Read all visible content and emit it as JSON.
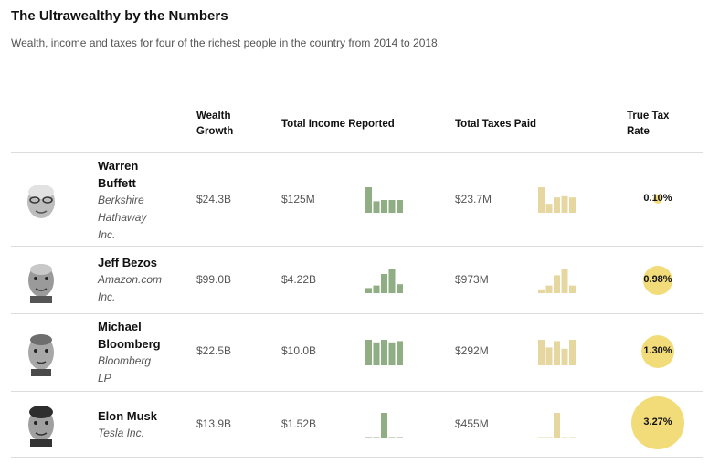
{
  "title": "The Ultrawealthy by the Numbers",
  "subtitle": "Wealth, income and taxes for four of the richest people in the country from 2014 to 2018.",
  "headers": {
    "wealth_1": "Wealth",
    "wealth_2": "Growth",
    "income": "Total Income Reported",
    "taxes": "Total Taxes Paid",
    "rate_1": "True Tax",
    "rate_2": "Rate"
  },
  "colors": {
    "income_bars": "#8fae84",
    "tax_bars": "#e6d7a0",
    "rate_bubble": "#f2dc7a"
  },
  "chart_data": {
    "type": "table",
    "columns": [
      "Wealth Growth",
      "Total Income Reported",
      "Total Taxes Paid",
      "True Tax Rate"
    ],
    "rows": [
      {
        "name_lines": [
          "Warren",
          "Buffett"
        ],
        "company_lines": [
          "Berkshire",
          "Hathaway",
          "Inc."
        ],
        "wealth_growth": "$24.3B",
        "income": "$125M",
        "taxes": "$23.7M",
        "rate": "0.10%",
        "rate_value": 0.1,
        "income_trend": [
          1.0,
          0.45,
          0.5,
          0.5,
          0.5
        ],
        "tax_trend": [
          1.0,
          0.35,
          0.6,
          0.65,
          0.6
        ]
      },
      {
        "name_lines": [
          "Jeff Bezos"
        ],
        "company_lines": [
          "Amazon.com",
          "Inc."
        ],
        "wealth_growth": "$99.0B",
        "income": "$4.22B",
        "taxes": "$973M",
        "rate": "0.98%",
        "rate_value": 0.98,
        "income_trend": [
          0.2,
          0.3,
          0.75,
          0.95,
          0.35
        ],
        "tax_trend": [
          0.15,
          0.3,
          0.7,
          0.95,
          0.3
        ]
      },
      {
        "name_lines": [
          "Michael",
          "Bloomberg"
        ],
        "company_lines": [
          "Bloomberg",
          "LP"
        ],
        "wealth_growth": "$22.5B",
        "income": "$10.0B",
        "taxes": "$292M",
        "rate": "1.30%",
        "rate_value": 1.3,
        "income_trend": [
          1.0,
          0.9,
          1.0,
          0.9,
          0.95
        ],
        "tax_trend": [
          1.0,
          0.7,
          0.95,
          0.65,
          1.0
        ]
      },
      {
        "name_lines": [
          "Elon Musk"
        ],
        "company_lines": [
          "Tesla Inc."
        ],
        "wealth_growth": "$13.9B",
        "income": "$1.52B",
        "taxes": "$455M",
        "rate": "3.27%",
        "rate_value": 3.27,
        "income_trend": [
          0.05,
          0.05,
          1.0,
          0.05,
          0.05
        ],
        "tax_trend": [
          0.04,
          0.04,
          1.0,
          0.04,
          0.04
        ]
      }
    ]
  }
}
